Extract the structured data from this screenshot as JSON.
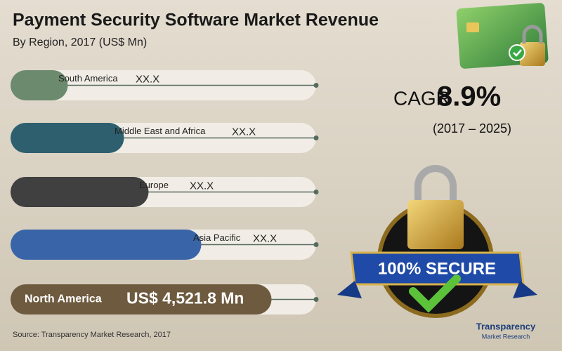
{
  "header": {
    "title": "Payment Security Software Market Revenue",
    "subtitle": "By Region, 2017 (US$ Mn)"
  },
  "regions": [
    {
      "name": "South America",
      "value": "XX.X"
    },
    {
      "name": "Middle East and Africa",
      "value": "XX.X"
    },
    {
      "name": "Europe",
      "value": "XX.X"
    },
    {
      "name": "Asia Pacific",
      "value": "XX.X"
    },
    {
      "name": "North America",
      "value": "US$ 4,521.8 Mn"
    }
  ],
  "cagr": {
    "label": "CAGR",
    "value": "8.9%",
    "period": "(2017 – 2025)"
  },
  "badge": "100% SECURE",
  "source": "Source: Transparency Market Research, 2017",
  "logo": {
    "name": "Transparency",
    "sub": "Market Research"
  }
}
